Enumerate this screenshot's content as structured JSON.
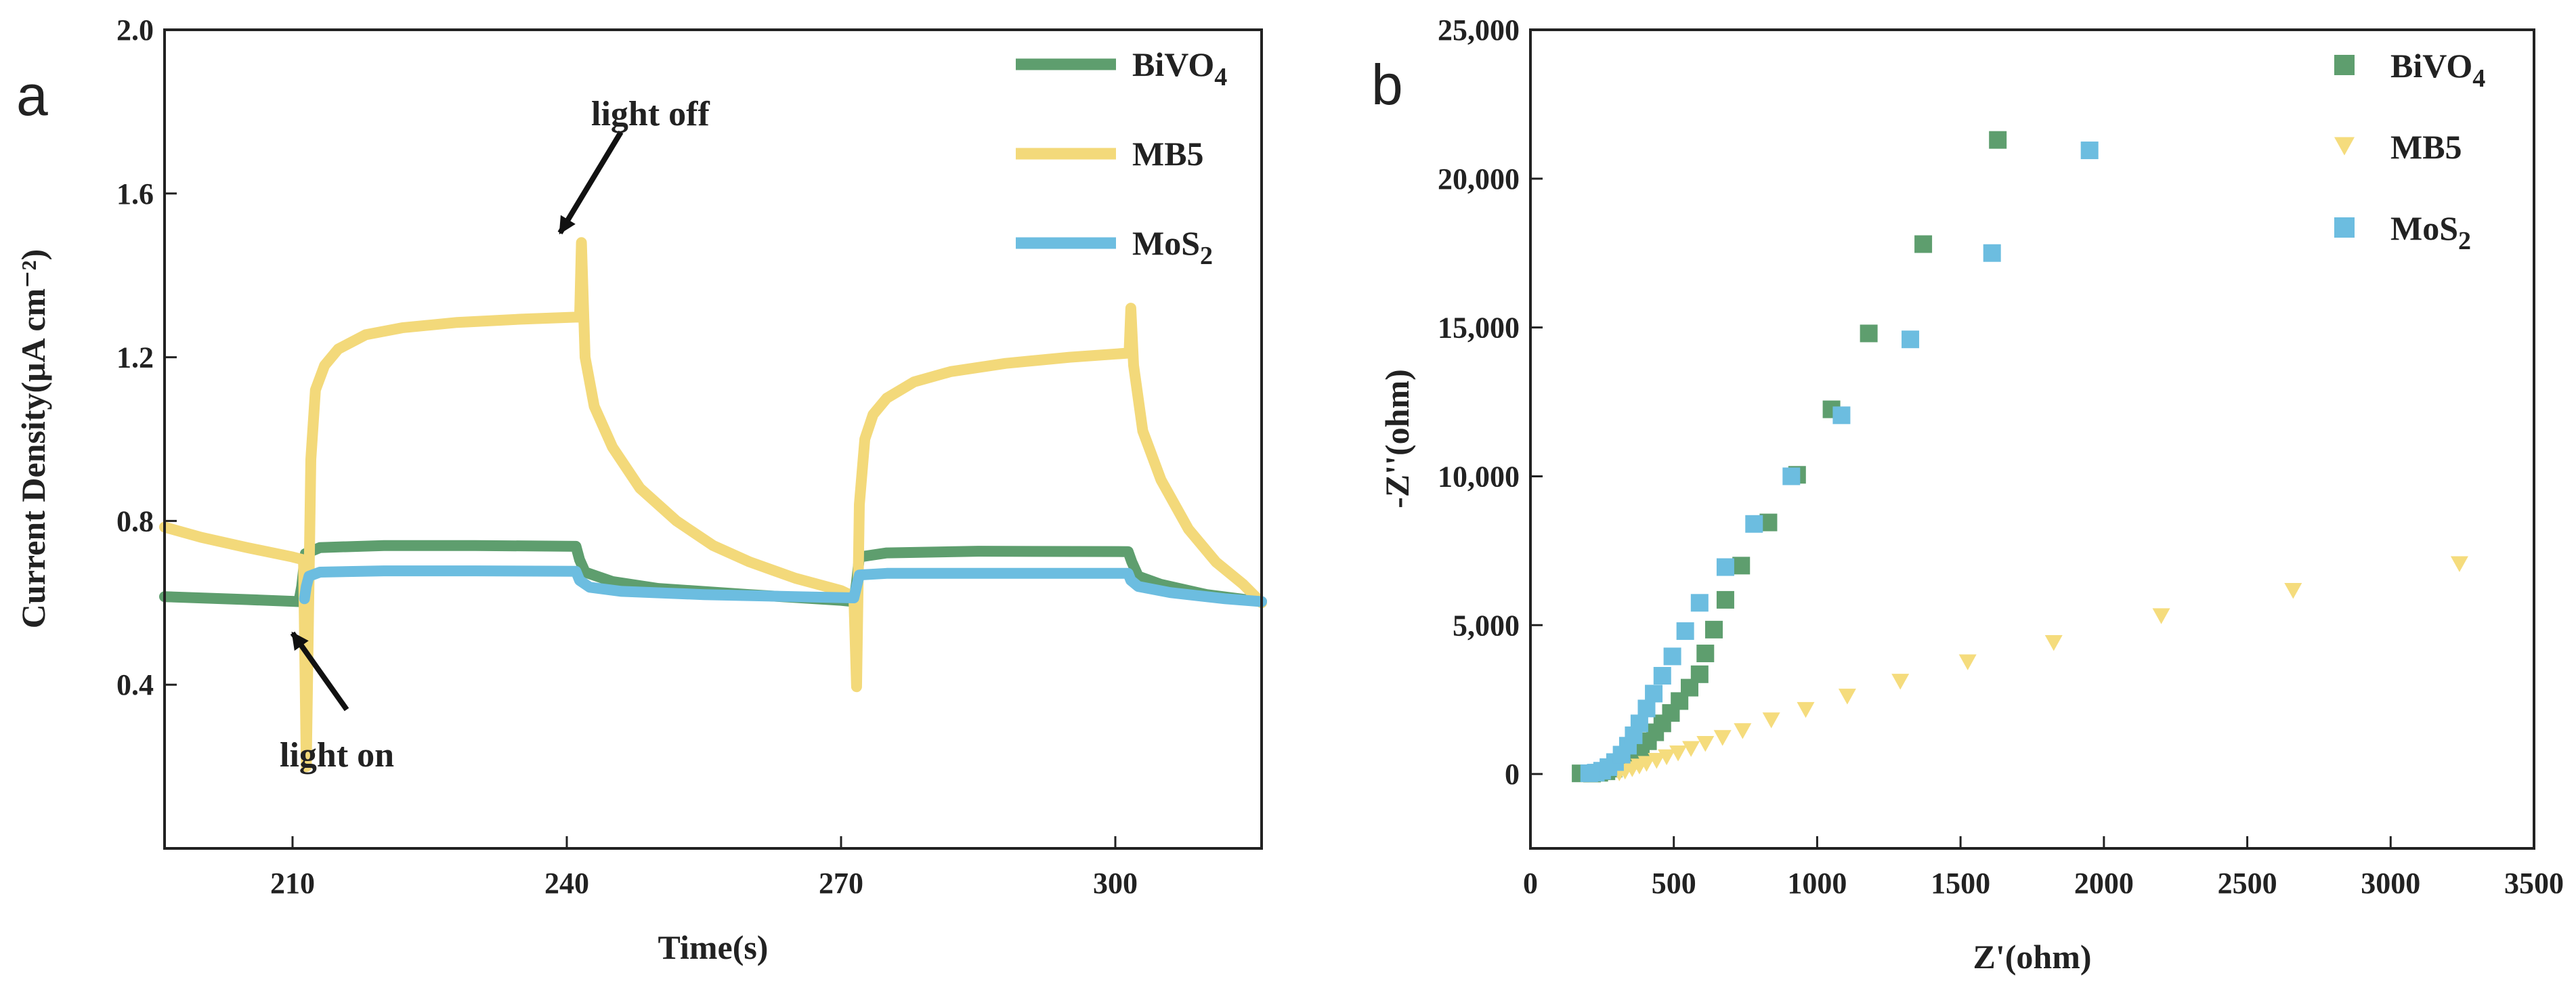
{
  "chart_data": [
    {
      "panel_label": "a",
      "type": "line",
      "title": "",
      "xlabel": "Time(s)",
      "ylabel": "Current Density(μA cm⁻²)",
      "xlim": [
        196,
        316
      ],
      "ylim": [
        0.0,
        2.0
      ],
      "xticks": [
        210,
        240,
        270,
        300
      ],
      "yticks": [
        0.4,
        0.8,
        1.2,
        1.6,
        2.0
      ],
      "xtick_labels": [
        "210",
        "240",
        "270",
        "300"
      ],
      "ytick_labels": [
        "0.4",
        "0.8",
        "1.2",
        "1.6",
        "2.0"
      ],
      "legend_position": "top-right",
      "annotations": [
        {
          "text": "light off",
          "points_to": [
            241.5,
            1.48
          ]
        },
        {
          "text": "light on",
          "points_to": [
            211,
            0.61
          ]
        }
      ],
      "series": [
        {
          "name": "BiVO4",
          "legend": [
            "BiVO",
            "4"
          ],
          "color": "#5e9e6e",
          "points": [
            [
              196,
              0.615
            ],
            [
              205,
              0.608
            ],
            [
              210.7,
              0.603
            ],
            [
              211,
              0.64
            ],
            [
              211.4,
              0.72
            ],
            [
              213,
              0.735
            ],
            [
              220,
              0.74
            ],
            [
              230,
              0.74
            ],
            [
              241,
              0.738
            ],
            [
              241.4,
              0.705
            ],
            [
              242,
              0.675
            ],
            [
              245,
              0.652
            ],
            [
              250,
              0.635
            ],
            [
              260,
              0.62
            ],
            [
              270,
              0.606
            ],
            [
              271.4,
              0.603
            ],
            [
              271.7,
              0.65
            ],
            [
              272,
              0.712
            ],
            [
              275,
              0.722
            ],
            [
              285,
              0.726
            ],
            [
              301.4,
              0.725
            ],
            [
              301.8,
              0.7
            ],
            [
              302.5,
              0.665
            ],
            [
              305,
              0.645
            ],
            [
              310,
              0.62
            ],
            [
              316,
              0.603
            ]
          ]
        },
        {
          "name": "MB5",
          "legend": [
            "MB5"
          ],
          "color": "#f3d97a",
          "points": [
            [
              196,
              0.785
            ],
            [
              200,
              0.76
            ],
            [
              205,
              0.735
            ],
            [
              210,
              0.712
            ],
            [
              211.2,
              0.705
            ],
            [
              211.5,
              0.2
            ],
            [
              212,
              0.95
            ],
            [
              212.5,
              1.12
            ],
            [
              213.5,
              1.18
            ],
            [
              215,
              1.22
            ],
            [
              218,
              1.255
            ],
            [
              222,
              1.272
            ],
            [
              228,
              1.285
            ],
            [
              235,
              1.293
            ],
            [
              241,
              1.298
            ],
            [
              241.4,
              1.298
            ],
            [
              241.6,
              1.48
            ],
            [
              242,
              1.2
            ],
            [
              243,
              1.08
            ],
            [
              245,
              0.98
            ],
            [
              248,
              0.88
            ],
            [
              252,
              0.8
            ],
            [
              256,
              0.74
            ],
            [
              260,
              0.7
            ],
            [
              265,
              0.66
            ],
            [
              270,
              0.63
            ],
            [
              271.4,
              0.615
            ],
            [
              271.7,
              0.395
            ],
            [
              272,
              0.84
            ],
            [
              272.6,
              1.0
            ],
            [
              273.5,
              1.06
            ],
            [
              275,
              1.1
            ],
            [
              278,
              1.14
            ],
            [
              282,
              1.165
            ],
            [
              288,
              1.185
            ],
            [
              295,
              1.2
            ],
            [
              301.3,
              1.21
            ],
            [
              301.5,
              1.21
            ],
            [
              301.7,
              1.32
            ],
            [
              302,
              1.18
            ],
            [
              303,
              1.02
            ],
            [
              305,
              0.9
            ],
            [
              308,
              0.78
            ],
            [
              311,
              0.7
            ],
            [
              314,
              0.645
            ],
            [
              316,
              0.6
            ]
          ]
        },
        {
          "name": "MoS2",
          "legend": [
            "MoS",
            "2"
          ],
          "color": "#6cbde0",
          "points": [
            [
              211.3,
              0.61
            ],
            [
              211.5,
              0.64
            ],
            [
              211.8,
              0.665
            ],
            [
              213,
              0.675
            ],
            [
              220,
              0.678
            ],
            [
              230,
              0.678
            ],
            [
              241,
              0.677
            ],
            [
              241.4,
              0.655
            ],
            [
              242.5,
              0.638
            ],
            [
              246,
              0.628
            ],
            [
              255,
              0.62
            ],
            [
              265,
              0.615
            ],
            [
              271.4,
              0.612
            ],
            [
              271.7,
              0.64
            ],
            [
              272,
              0.668
            ],
            [
              275,
              0.672
            ],
            [
              285,
              0.672
            ],
            [
              301.4,
              0.672
            ],
            [
              301.7,
              0.655
            ],
            [
              302.5,
              0.64
            ],
            [
              306,
              0.625
            ],
            [
              312,
              0.61
            ],
            [
              316,
              0.603
            ]
          ]
        }
      ]
    },
    {
      "panel_label": "b",
      "type": "scatter",
      "title": "",
      "xlabel": "Z'(ohm)",
      "ylabel": "-Z''(ohm)",
      "xlim": [
        0,
        3500
      ],
      "ylim": [
        -2500,
        25000
      ],
      "xticks": [
        0,
        500,
        1000,
        1500,
        2000,
        2500,
        3000,
        3500
      ],
      "yticks": [
        0,
        5000,
        10000,
        15000,
        20000,
        25000
      ],
      "xtick_labels": [
        "0",
        "500",
        "1000",
        "1500",
        "2000",
        "2500",
        "3000",
        "3500"
      ],
      "ytick_labels": [
        "0",
        "5,000",
        "10,000",
        "15,000",
        "20,000",
        "25,000"
      ],
      "legend_position": "top-right",
      "series": [
        {
          "name": "BiVO4",
          "legend": [
            "BiVO",
            "4"
          ],
          "marker": "square",
          "color": "#5e9e6e",
          "points": [
            [
              175,
              20
            ],
            [
              215,
              15
            ],
            [
              240,
              40
            ],
            [
              265,
              90
            ],
            [
              290,
              180
            ],
            [
              310,
              300
            ],
            [
              335,
              450
            ],
            [
              360,
              650
            ],
            [
              385,
              850
            ],
            [
              410,
              1100
            ],
            [
              435,
              1400
            ],
            [
              460,
              1700
            ],
            [
              490,
              2050
            ],
            [
              520,
              2450
            ],
            [
              555,
              2900
            ],
            [
              590,
              3350
            ],
            [
              610,
              4050
            ],
            [
              640,
              4850
            ],
            [
              680,
              5850
            ],
            [
              735,
              7000
            ],
            [
              830,
              8450
            ],
            [
              930,
              10050
            ],
            [
              1050,
              12250
            ],
            [
              1180,
              14800
            ],
            [
              1370,
              17800
            ],
            [
              1630,
              21300
            ]
          ]
        },
        {
          "name": "MB5",
          "legend": [
            "MB5"
          ],
          "marker": "triangle-down",
          "color": "#f5dc7d",
          "points": [
            [
              310,
              20
            ],
            [
              330,
              80
            ],
            [
              355,
              160
            ],
            [
              380,
              250
            ],
            [
              405,
              340
            ],
            [
              440,
              440
            ],
            [
              475,
              560
            ],
            [
              515,
              690
            ],
            [
              560,
              840
            ],
            [
              610,
              1010
            ],
            [
              670,
              1210
            ],
            [
              740,
              1440
            ],
            [
              840,
              1800
            ],
            [
              960,
              2150
            ],
            [
              1105,
              2600
            ],
            [
              1290,
              3100
            ],
            [
              1525,
              3750
            ],
            [
              1825,
              4400
            ],
            [
              2200,
              5300
            ],
            [
              2660,
              6150
            ],
            [
              3240,
              7050
            ]
          ]
        },
        {
          "name": "MoS2",
          "legend": [
            "MoS",
            "2"
          ],
          "marker": "square",
          "color": "#6cbde0",
          "points": [
            [
              205,
              25
            ],
            [
              228,
              45
            ],
            [
              250,
              110
            ],
            [
              272,
              230
            ],
            [
              295,
              400
            ],
            [
              318,
              650
            ],
            [
              340,
              950
            ],
            [
              360,
              1300
            ],
            [
              380,
              1700
            ],
            [
              405,
              2200
            ],
            [
              430,
              2700
            ],
            [
              460,
              3300
            ],
            [
              495,
              3950
            ],
            [
              540,
              4800
            ],
            [
              590,
              5750
            ],
            [
              680,
              6950
            ],
            [
              780,
              8400
            ],
            [
              910,
              10000
            ],
            [
              1085,
              12050
            ],
            [
              1325,
              14600
            ],
            [
              1610,
              17500
            ],
            [
              1950,
              20950
            ]
          ]
        }
      ]
    }
  ]
}
